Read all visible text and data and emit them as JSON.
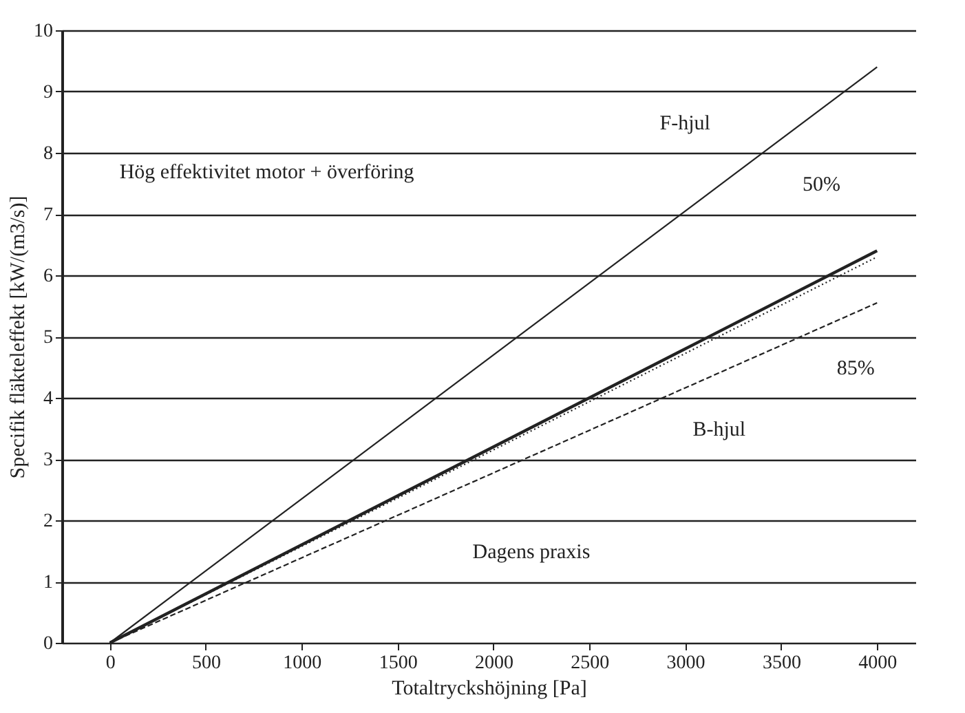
{
  "chart_data": {
    "type": "line",
    "xlabel": "Totaltryckshöjning [Pa]",
    "ylabel": "Specifik fläkteleffekt [kW/(m3/s)]",
    "xlim": [
      -250,
      4200
    ],
    "ylim": [
      0,
      10
    ],
    "xticks": [
      0,
      500,
      1000,
      1500,
      2000,
      2500,
      3000,
      3500,
      4000
    ],
    "yticks": [
      0,
      1,
      2,
      3,
      4,
      5,
      6,
      7,
      8,
      9,
      10
    ],
    "grid": "y",
    "marker": "none",
    "x": [
      0,
      4000
    ],
    "series": [
      {
        "color": "#222222",
        "values": [
          0,
          9.4
        ],
        "line_style": "solid"
      },
      {
        "color": "#222222",
        "values": [
          0,
          6.4
        ],
        "line_style": "solid"
      },
      {
        "color": "#222222",
        "values": [
          0,
          6.3
        ],
        "line_style": "dotted"
      },
      {
        "color": "#222222",
        "values": [
          0,
          5.55
        ],
        "line_style": "dashed"
      }
    ],
    "annotations": [
      "Hög effektivitet motor + överföring",
      "F-hjul",
      "50%",
      "85%",
      "B-hjul",
      "Dagens praxis"
    ]
  }
}
